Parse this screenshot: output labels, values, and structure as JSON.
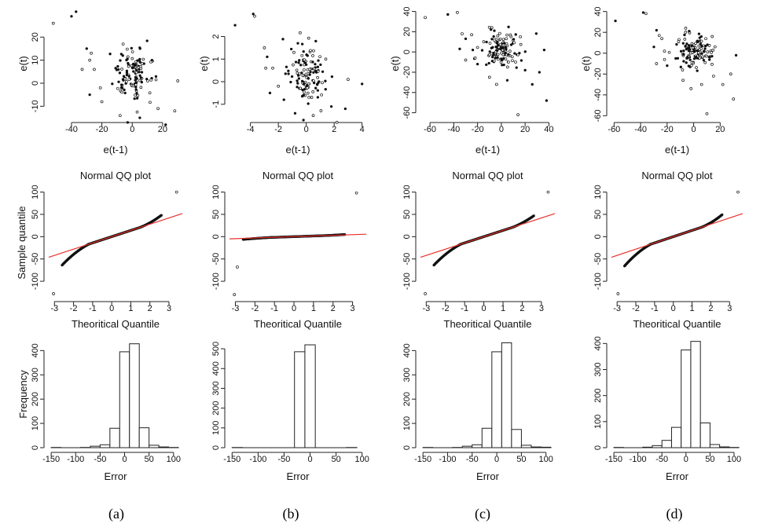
{
  "labels": {
    "scatter_x": "e(t-1)",
    "scatter_y": "e(t)",
    "qq_title": "Normal QQ plot",
    "qq_x": "Theoritical Quantile",
    "qq_y": "Sample quantile",
    "hist_x": "Error",
    "hist_y": "Frequency"
  },
  "captions": [
    "(a)",
    "(b)",
    "(c)",
    "(d)"
  ],
  "colors": {
    "points": "#111111",
    "qq_line": "#e8302a",
    "bars": "#ffffff",
    "axis": "#222222"
  },
  "chart_data": [
    {
      "panel": "a",
      "type": "scatter",
      "xlabel": "e(t-1)",
      "ylabel": "e(t)",
      "xlim": [
        -55,
        33
      ],
      "ylim": [
        -15,
        32
      ],
      "xticks": [
        -40,
        -20,
        0,
        20
      ],
      "yticks": [
        -10,
        0,
        10,
        20
      ],
      "outliers": [
        [
          -52,
          26
        ],
        [
          -40,
          29
        ],
        [
          -37,
          31
        ],
        [
          -30,
          15
        ],
        [
          -28,
          10
        ],
        [
          -27,
          13
        ],
        [
          -33,
          6
        ],
        [
          -25,
          6
        ],
        [
          -21,
          -2
        ],
        [
          -20,
          -8
        ],
        [
          -28,
          -5
        ],
        [
          -8,
          -14
        ],
        [
          -3,
          -17
        ],
        [
          5,
          -15
        ],
        [
          17,
          -11
        ],
        [
          22,
          -18
        ],
        [
          28,
          -12
        ],
        [
          30,
          1
        ],
        [
          13,
          10
        ],
        [
          -6,
          17
        ]
      ],
      "cluster": {
        "cx": 0,
        "cy": 3,
        "sx": 6,
        "sy": 6,
        "n": 120
      }
    },
    {
      "panel": "b",
      "type": "scatter",
      "xlabel": "e(t-1)",
      "ylabel": "e(t)",
      "xlim": [
        -5.5,
        4.3
      ],
      "ylim": [
        -1.6,
        3.2
      ],
      "xticks": [
        -4,
        -2,
        0,
        2,
        4
      ],
      "yticks": [
        -1,
        0,
        1,
        2
      ],
      "outliers": [
        [
          -5.1,
          2.5
        ],
        [
          -3.8,
          3.0
        ],
        [
          -3.7,
          2.9
        ],
        [
          -3.0,
          1.5
        ],
        [
          -2.8,
          1.1
        ],
        [
          -2.9,
          0.6
        ],
        [
          -2.4,
          0.6
        ],
        [
          -2.0,
          -0.2
        ],
        [
          -1.6,
          -0.8
        ],
        [
          -2.6,
          -0.5
        ],
        [
          -0.8,
          -1.4
        ],
        [
          -0.2,
          -1.7
        ],
        [
          0.5,
          -1.5
        ],
        [
          1.8,
          -1.1
        ],
        [
          2.2,
          -1.8
        ],
        [
          2.8,
          -1.2
        ],
        [
          3.0,
          0.1
        ],
        [
          4.0,
          -0.1
        ],
        [
          1.4,
          1.0
        ],
        [
          -0.6,
          1.7
        ]
      ],
      "cluster": {
        "cx": 0,
        "cy": 0.3,
        "sx": 0.6,
        "sy": 0.6,
        "n": 120
      }
    },
    {
      "panel": "c",
      "type": "scatter",
      "xlabel": "e(t-1)",
      "ylabel": "e(t)",
      "xlim": [
        -68,
        45
      ],
      "ylim": [
        -65,
        42
      ],
      "xticks": [
        -60,
        -40,
        -20,
        0,
        20,
        40
      ],
      "yticks": [
        -60,
        -40,
        -20,
        0,
        20,
        40
      ],
      "outliers": [
        [
          -64,
          34
        ],
        [
          -45,
          37
        ],
        [
          -37,
          39
        ],
        [
          -33,
          18
        ],
        [
          -30,
          13
        ],
        [
          -25,
          17
        ],
        [
          -35,
          3
        ],
        [
          -24,
          2
        ],
        [
          -22,
          -6
        ],
        [
          -20,
          -12
        ],
        [
          -30,
          -8
        ],
        [
          -10,
          -25
        ],
        [
          -4,
          -32
        ],
        [
          5,
          -28
        ],
        [
          20,
          -18
        ],
        [
          26,
          -32
        ],
        [
          32,
          -20
        ],
        [
          36,
          2
        ],
        [
          38,
          -48
        ],
        [
          14,
          -62
        ],
        [
          -8,
          24
        ],
        [
          16,
          15
        ]
      ],
      "cluster": {
        "cx": 0,
        "cy": 2,
        "sx": 8,
        "sy": 9,
        "n": 120
      }
    },
    {
      "panel": "d",
      "type": "scatter",
      "xlabel": "e(t-1)",
      "ylabel": "e(t)",
      "xlim": [
        -62,
        37
      ],
      "ylim": [
        -62,
        42
      ],
      "xticks": [
        -60,
        -40,
        -20,
        0,
        20
      ],
      "yticks": [
        -60,
        -40,
        -20,
        0,
        20,
        40
      ],
      "outliers": [
        [
          -59,
          31
        ],
        [
          -38,
          39
        ],
        [
          -36,
          38
        ],
        [
          -28,
          22
        ],
        [
          -26,
          17
        ],
        [
          -24,
          14
        ],
        [
          -30,
          6
        ],
        [
          -22,
          2
        ],
        [
          -22,
          -6
        ],
        [
          -20,
          -12
        ],
        [
          -28,
          -10
        ],
        [
          -8,
          -26
        ],
        [
          -2,
          -34
        ],
        [
          6,
          -30
        ],
        [
          15,
          -22
        ],
        [
          22,
          -30
        ],
        [
          28,
          -20
        ],
        [
          32,
          -2
        ],
        [
          30,
          -44
        ],
        [
          10,
          -58
        ],
        [
          -6,
          24
        ],
        [
          14,
          16
        ]
      ],
      "cluster": {
        "cx": 0,
        "cy": 2,
        "sx": 7,
        "sy": 8,
        "n": 120
      }
    },
    {
      "panel": "a",
      "type": "qq",
      "title": "Normal QQ plot",
      "xlabel": "Theoritical Quantile",
      "ylabel": "Sample quantile",
      "xlim": [
        -3.3,
        3.7
      ],
      "ylim": [
        -135,
        108
      ],
      "xticks": [
        -3,
        -2,
        -1,
        0,
        1,
        2,
        3
      ],
      "yticks": [
        -100,
        -50,
        0,
        50,
        100
      ],
      "line": {
        "intercept": 0,
        "slope": 14
      },
      "curve": {
        "low_slope": 8,
        "low_min": -82,
        "high_slope": 7,
        "high_max": 72
      },
      "extremes": [
        [
          -3.05,
          -128
        ],
        [
          3.4,
          100
        ]
      ]
    },
    {
      "panel": "b",
      "type": "qq",
      "title": "Normal QQ plot",
      "xlabel": "Theoritical Quantile",
      "ylabel": "Sample quantile",
      "xlim": [
        -3.3,
        3.7
      ],
      "ylim": [
        -135,
        108
      ],
      "xticks": [
        -3,
        -2,
        -1,
        0,
        1,
        2,
        3
      ],
      "yticks": [
        -100,
        -50,
        0,
        50,
        100
      ],
      "line": {
        "intercept": 0,
        "slope": 1.5
      },
      "curve": {
        "low_slope": 0.5,
        "low_min": -7,
        "high_slope": 0.5,
        "high_max": 6
      },
      "extremes": [
        [
          -3.05,
          -130
        ],
        [
          -2.9,
          -68
        ],
        [
          3.2,
          98
        ]
      ]
    },
    {
      "panel": "c",
      "type": "qq",
      "title": "Normal QQ plot",
      "xlabel": "Theoritical Quantile",
      "ylabel": "Sample quantile",
      "xlim": [
        -3.3,
        3.7
      ],
      "ylim": [
        -135,
        108
      ],
      "xticks": [
        -3,
        -2,
        -1,
        0,
        1,
        2,
        3
      ],
      "yticks": [
        -100,
        -50,
        0,
        50,
        100
      ],
      "line": {
        "intercept": 0,
        "slope": 14
      },
      "curve": {
        "low_slope": 8,
        "low_min": -75,
        "high_slope": 6,
        "high_max": 60
      },
      "extremes": [
        [
          -3.05,
          -128
        ],
        [
          3.35,
          100
        ]
      ]
    },
    {
      "panel": "d",
      "type": "qq",
      "title": "Normal QQ plot",
      "xlabel": "Theoritical Quantile",
      "ylabel": "Sample quantile",
      "xlim": [
        -3.3,
        3.7
      ],
      "ylim": [
        -135,
        108
      ],
      "xticks": [
        -3,
        -2,
        -1,
        0,
        1,
        2,
        3
      ],
      "yticks": [
        -100,
        -50,
        0,
        50,
        100
      ],
      "line": {
        "intercept": 0,
        "slope": 14
      },
      "curve": {
        "low_slope": 9,
        "low_min": -75,
        "high_slope": 8,
        "high_max": 82
      },
      "extremes": [
        [
          -2.95,
          -128
        ],
        [
          3.45,
          100
        ]
      ]
    },
    {
      "panel": "a",
      "type": "bar",
      "xlabel": "Error",
      "ylabel": "Frequency",
      "xlim": [
        -155,
        118
      ],
      "ylim": [
        0,
        440
      ],
      "xticks": [
        -150,
        -100,
        -50,
        0,
        50,
        100
      ],
      "yticks": [
        0,
        100,
        200,
        300,
        400
      ],
      "bin_width": 20,
      "bins": [
        [
          -140,
          1
        ],
        [
          -120,
          0
        ],
        [
          -100,
          0
        ],
        [
          -80,
          1
        ],
        [
          -60,
          6
        ],
        [
          -40,
          12
        ],
        [
          -20,
          80
        ],
        [
          0,
          395
        ],
        [
          20,
          428
        ],
        [
          40,
          82
        ],
        [
          60,
          10
        ],
        [
          80,
          3
        ],
        [
          100,
          1
        ]
      ]
    },
    {
      "panel": "b",
      "type": "bar",
      "xlabel": "Error",
      "ylabel": "Frequency",
      "xlim": [
        -155,
        108
      ],
      "ylim": [
        0,
        540
      ],
      "xticks": [
        -150,
        -100,
        -50,
        0,
        50,
        100
      ],
      "yticks": [
        0,
        100,
        200,
        300,
        400,
        500
      ],
      "bin_width": 20,
      "bins": [
        [
          -140,
          1
        ],
        [
          -20,
          485
        ],
        [
          0,
          520
        ],
        [
          80,
          1
        ]
      ]
    },
    {
      "panel": "c",
      "type": "bar",
      "xlabel": "Error",
      "ylabel": "Frequency",
      "xlim": [
        -155,
        118
      ],
      "ylim": [
        0,
        440
      ],
      "xticks": [
        -150,
        -100,
        -50,
        0,
        50,
        100
      ],
      "yticks": [
        0,
        100,
        200,
        300,
        400
      ],
      "bin_width": 20,
      "bins": [
        [
          -140,
          1
        ],
        [
          -120,
          0
        ],
        [
          -100,
          0
        ],
        [
          -80,
          1
        ],
        [
          -60,
          6
        ],
        [
          -40,
          12
        ],
        [
          -20,
          80
        ],
        [
          0,
          395
        ],
        [
          20,
          432
        ],
        [
          40,
          75
        ],
        [
          60,
          10
        ],
        [
          80,
          3
        ],
        [
          100,
          2
        ]
      ]
    },
    {
      "panel": "d",
      "type": "bar",
      "xlabel": "Error",
      "ylabel": "Frequency",
      "xlim": [
        -155,
        118
      ],
      "ylim": [
        0,
        410
      ],
      "xticks": [
        -150,
        -100,
        -50,
        0,
        50,
        100
      ],
      "yticks": [
        0,
        100,
        200,
        300,
        400
      ],
      "bin_width": 20,
      "bins": [
        [
          -140,
          1
        ],
        [
          -120,
          0
        ],
        [
          -100,
          0
        ],
        [
          -80,
          2
        ],
        [
          -60,
          8
        ],
        [
          -40,
          28
        ],
        [
          -20,
          78
        ],
        [
          0,
          375
        ],
        [
          20,
          408
        ],
        [
          40,
          95
        ],
        [
          60,
          12
        ],
        [
          80,
          3
        ],
        [
          100,
          1
        ]
      ]
    }
  ]
}
